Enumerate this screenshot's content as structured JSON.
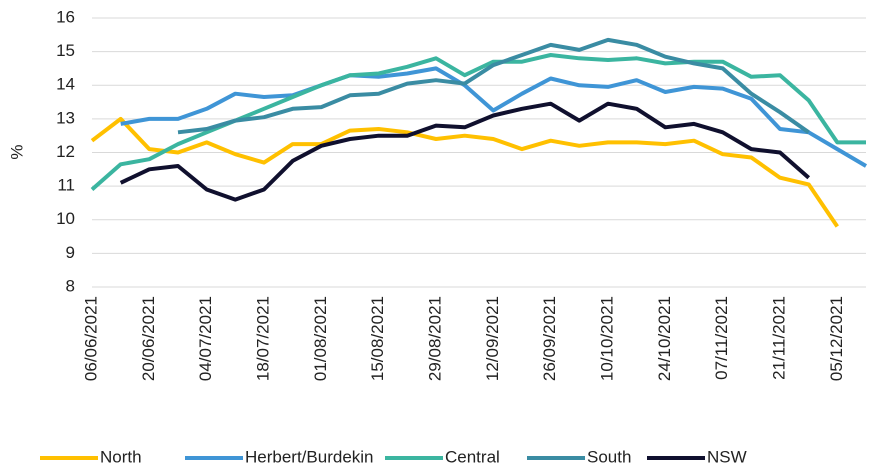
{
  "chart_data": {
    "type": "line",
    "ylabel": "%",
    "categories": [
      "06/06/2021",
      null,
      "20/06/2021",
      null,
      "04/07/2021",
      null,
      "18/07/2021",
      null,
      "01/08/2021",
      null,
      "15/08/2021",
      null,
      "29/08/2021",
      null,
      "12/09/2021",
      null,
      "26/09/2021",
      null,
      "10/10/2021",
      null,
      "24/10/2021",
      null,
      "07/11/2021",
      null,
      "21/11/2021",
      null,
      "05/12/2021",
      null
    ],
    "series": [
      {
        "name": "North",
        "color": "#ffc000",
        "values": [
          12.35,
          13.0,
          12.1,
          12.0,
          12.3,
          11.95,
          11.7,
          12.25,
          12.25,
          12.65,
          12.7,
          12.6,
          12.4,
          12.5,
          12.4,
          12.1,
          12.35,
          12.2,
          12.3,
          12.3,
          12.25,
          12.35,
          11.95,
          11.85,
          11.25,
          11.05,
          9.8,
          null
        ]
      },
      {
        "name": "Herbert/Burdekin",
        "color": "#3f95d6",
        "values": [
          null,
          12.85,
          13.0,
          13.0,
          13.3,
          13.75,
          13.65,
          13.7,
          14.0,
          14.3,
          14.25,
          14.35,
          14.5,
          14.0,
          13.25,
          13.75,
          14.2,
          14.0,
          13.95,
          14.15,
          13.8,
          13.95,
          13.9,
          13.6,
          12.7,
          12.6,
          12.1,
          11.6
        ]
      },
      {
        "name": "Central",
        "color": "#3bb5a0",
        "values": [
          10.9,
          11.65,
          11.8,
          12.25,
          12.6,
          12.95,
          13.3,
          13.65,
          14.0,
          14.3,
          14.35,
          14.55,
          14.8,
          14.3,
          14.7,
          14.7,
          14.9,
          14.8,
          14.75,
          14.8,
          14.65,
          14.7,
          14.7,
          14.25,
          14.3,
          13.55,
          12.3,
          12.3
        ]
      },
      {
        "name": "South",
        "color": "#3a8ca3",
        "values": [
          null,
          null,
          null,
          12.6,
          12.7,
          12.95,
          13.05,
          13.3,
          13.35,
          13.7,
          13.75,
          14.05,
          14.15,
          14.05,
          14.6,
          14.9,
          15.2,
          15.05,
          15.35,
          15.2,
          14.85,
          14.65,
          14.5,
          13.75,
          13.2,
          12.6,
          null,
          null
        ]
      },
      {
        "name": "NSW",
        "color": "#10102e",
        "values": [
          null,
          11.1,
          11.5,
          11.6,
          10.9,
          10.6,
          10.9,
          11.75,
          12.2,
          12.4,
          12.5,
          12.5,
          12.8,
          12.75,
          13.1,
          13.3,
          13.45,
          12.95,
          13.45,
          13.3,
          12.75,
          12.85,
          12.6,
          12.1,
          12.0,
          11.25,
          null,
          null
        ]
      }
    ],
    "ylim": [
      8,
      16
    ],
    "yticks": [
      8,
      9,
      10,
      11,
      12,
      13,
      14,
      15,
      16
    ],
    "grid": true
  }
}
